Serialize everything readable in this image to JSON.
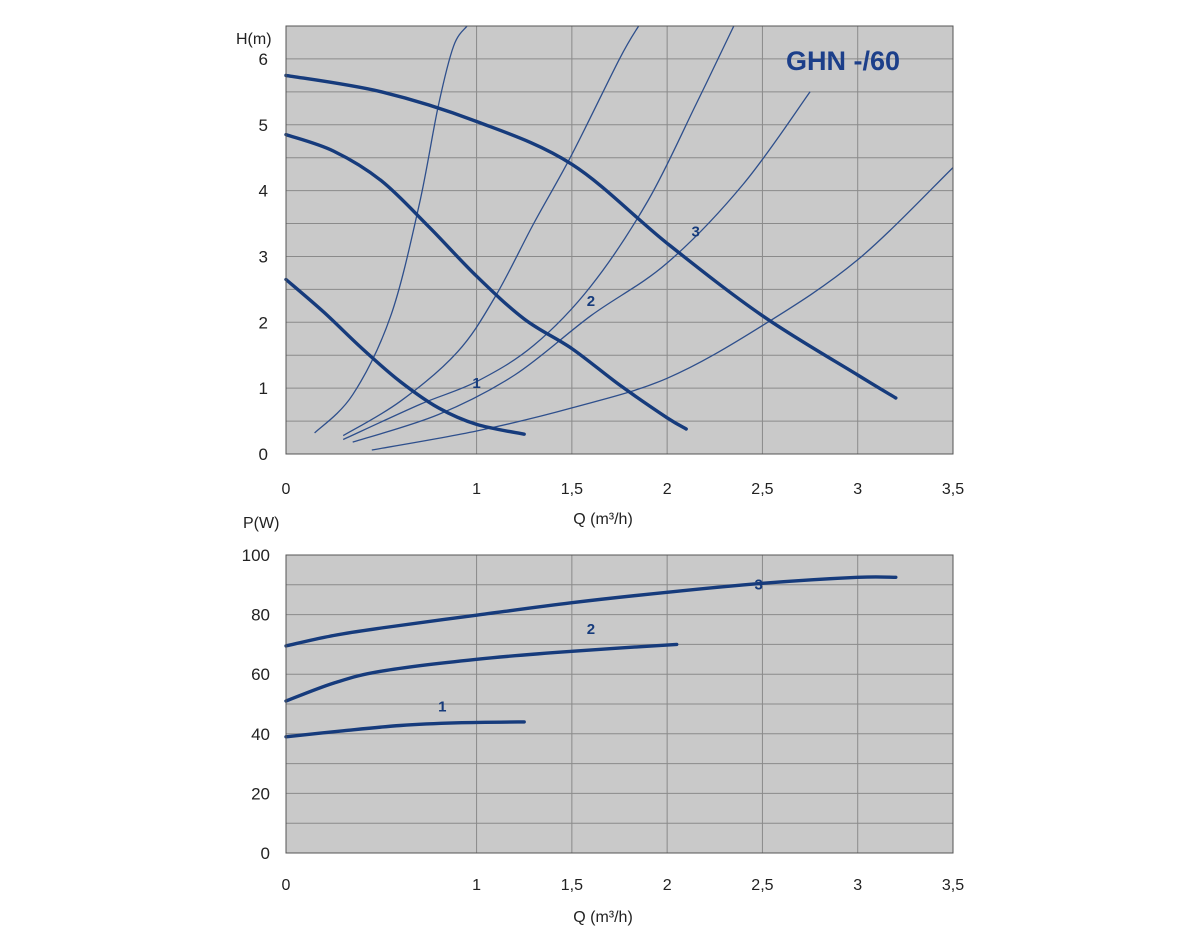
{
  "colors": {
    "plot_bg": "#c9c9c9",
    "grid": "#8a8a8a",
    "curve": "#163b7c",
    "system_curve": "#2e4f8c",
    "text": "#222222",
    "title": "#1c3f8a"
  },
  "chart_data": [
    {
      "type": "line",
      "title": "GHN -/60",
      "xlabel": "Q (m³/h)",
      "ylabel": "H(m)",
      "xlim": [
        0,
        3.5
      ],
      "ylim": [
        0,
        6.5
      ],
      "xticks": [
        0,
        1,
        1.5,
        2,
        2.5,
        3,
        3.5
      ],
      "xtick_labels": [
        "0",
        "1",
        "1,5",
        "2",
        "2,5",
        "3",
        "3,5"
      ],
      "yticks": [
        0,
        1,
        2,
        3,
        4,
        5,
        6
      ],
      "ytick_labels": [
        "0",
        "1",
        "2",
        "3",
        "4",
        "5",
        "6"
      ],
      "grid": true,
      "series": [
        {
          "name": "1",
          "x": [
            0,
            0.2,
            0.4,
            0.6,
            0.8,
            1.0,
            1.25
          ],
          "y": [
            2.65,
            2.15,
            1.6,
            1.1,
            0.7,
            0.45,
            0.3
          ]
        },
        {
          "name": "2",
          "x": [
            0,
            0.25,
            0.5,
            0.75,
            1.0,
            1.25,
            1.5,
            1.75,
            2.0,
            2.1
          ],
          "y": [
            4.85,
            4.6,
            4.15,
            3.45,
            2.7,
            2.05,
            1.6,
            1.05,
            0.55,
            0.38
          ]
        },
        {
          "name": "3",
          "x": [
            0,
            0.5,
            1.0,
            1.5,
            2.0,
            2.5,
            3.0,
            3.2
          ],
          "y": [
            5.75,
            5.5,
            5.05,
            4.4,
            3.2,
            2.1,
            1.2,
            0.85
          ]
        }
      ],
      "system_curves": [
        {
          "x": [
            0.15,
            0.35,
            0.55,
            0.7,
            0.8,
            0.88,
            0.95
          ],
          "y": [
            0.32,
            0.9,
            2.1,
            3.8,
            5.3,
            6.2,
            6.5
          ]
        },
        {
          "x": [
            0.3,
            0.6,
            0.9,
            1.1,
            1.3,
            1.5,
            1.75,
            1.85
          ],
          "y": [
            0.28,
            0.8,
            1.55,
            2.4,
            3.5,
            4.55,
            6.0,
            6.5
          ]
        },
        {
          "x": [
            0.3,
            0.7,
            1.0,
            1.3,
            1.6,
            1.9,
            2.15,
            2.35
          ],
          "y": [
            0.22,
            0.75,
            1.1,
            1.65,
            2.55,
            3.85,
            5.3,
            6.5
          ]
        },
        {
          "x": [
            0.35,
            0.8,
            1.2,
            1.6,
            2.0,
            2.4,
            2.75
          ],
          "y": [
            0.18,
            0.6,
            1.2,
            2.1,
            2.9,
            4.1,
            5.5
          ]
        },
        {
          "x": [
            0.45,
            1.0,
            1.5,
            2.0,
            2.5,
            3.0,
            3.5
          ],
          "y": [
            0.06,
            0.35,
            0.7,
            1.15,
            1.95,
            2.95,
            4.35
          ]
        }
      ]
    },
    {
      "type": "line",
      "title": "",
      "xlabel": "Q (m³/h)",
      "ylabel": "P(W)",
      "xlim": [
        0,
        3.5
      ],
      "ylim": [
        0,
        100
      ],
      "xticks": [
        0,
        1,
        1.5,
        2,
        2.5,
        3,
        3.5
      ],
      "xtick_labels": [
        "0",
        "1",
        "1,5",
        "2",
        "2,5",
        "3",
        "3,5"
      ],
      "yticks": [
        0,
        20,
        40,
        60,
        80,
        100
      ],
      "ytick_labels": [
        "0",
        "20",
        "40",
        "60",
        "80",
        "100"
      ],
      "grid": true,
      "series": [
        {
          "name": "1",
          "x": [
            0,
            0.3,
            0.6,
            0.9,
            1.25
          ],
          "y": [
            39,
            41,
            42.8,
            43.7,
            44
          ]
        },
        {
          "name": "2",
          "x": [
            0,
            0.25,
            0.5,
            1.0,
            1.5,
            2.05
          ],
          "y": [
            51,
            57,
            61,
            65,
            67.7,
            70
          ]
        },
        {
          "name": "3",
          "x": [
            0,
            0.25,
            0.5,
            1.0,
            1.5,
            2.0,
            2.5,
            3.0,
            3.2
          ],
          "y": [
            69.5,
            73,
            75.5,
            79.8,
            84,
            87.5,
            90.5,
            92.5,
            92.5
          ]
        }
      ]
    }
  ]
}
